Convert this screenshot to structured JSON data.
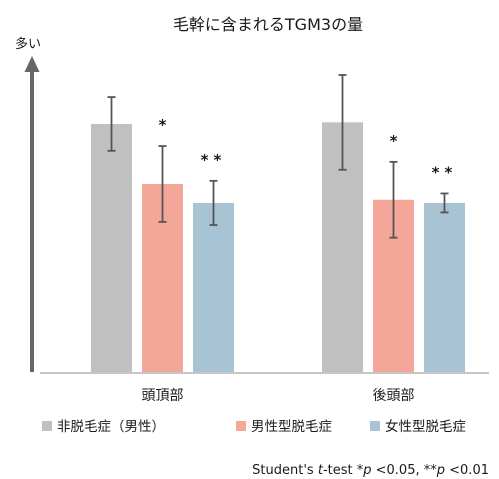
{
  "chart_data": {
    "type": "bar",
    "title": "毛幹に含まれるTGM3の量",
    "ylabel": "多い",
    "categories": [
      "頭頂部",
      "後頭部"
    ],
    "ylim": [
      0,
      100
    ],
    "grid": false,
    "legend_position": "bottom",
    "series": [
      {
        "name": "非脱毛症（男性）",
        "color": "#c0c0c0",
        "values": [
          78.5,
          79
        ],
        "error": [
          8.5,
          15
        ],
        "significance": [
          "",
          ""
        ]
      },
      {
        "name": "男性型脱毛症",
        "color": "#f4a698",
        "values": [
          59.5,
          54.5
        ],
        "error": [
          12,
          12
        ],
        "significance": [
          "*",
          "*"
        ]
      },
      {
        "name": "女性型脱毛症",
        "color": "#a7c3d4",
        "values": [
          53.5,
          53.5
        ],
        "error": [
          7,
          3
        ],
        "significance": [
          "**",
          "**"
        ]
      }
    ],
    "footnote": {
      "prefix": "Student's ",
      "t": "t",
      "middle": "-test *",
      "p1": "p",
      "after_p1": " <0.05, **",
      "p2": "p",
      "after_p2": " <0.01"
    }
  }
}
